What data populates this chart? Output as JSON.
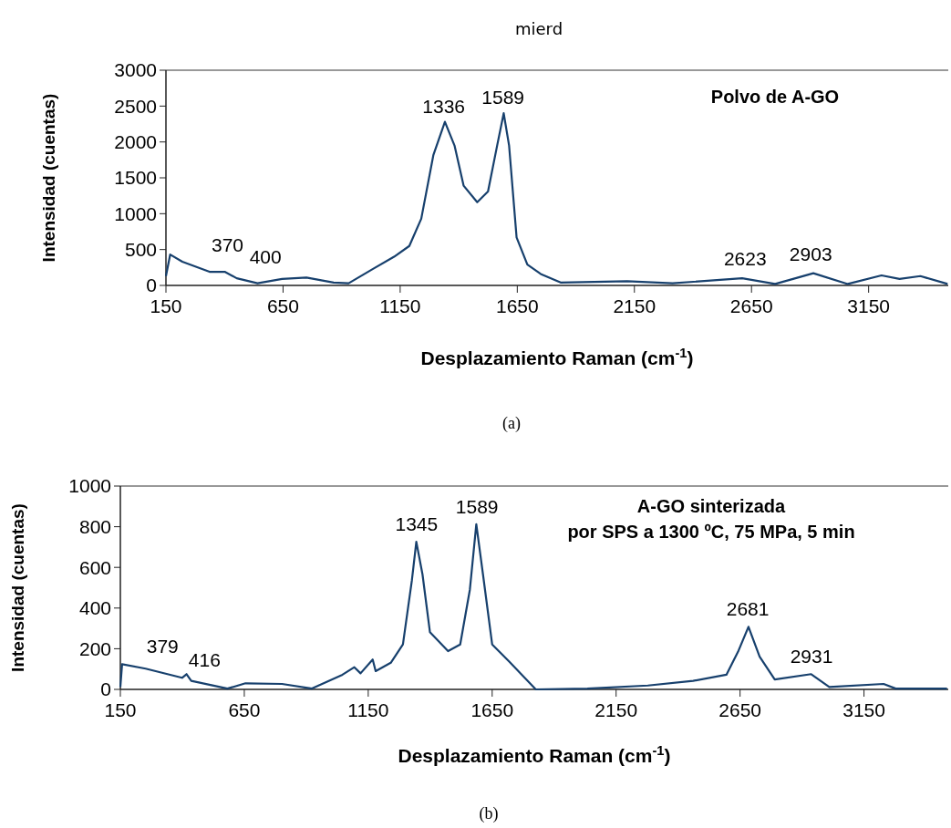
{
  "chart_data": [
    {
      "type": "line",
      "title": "mierd",
      "xlabel": "Desplazamiento Raman (cm$^{-1}$)",
      "ylabel": "Intensidad (cuentas)",
      "xlim": [
        150,
        3490
      ],
      "xticks": [
        150,
        650,
        1150,
        1650,
        2150,
        2650,
        3150
      ],
      "ylim": [
        0,
        3000
      ],
      "yticks": [
        0,
        500,
        1000,
        1500,
        2000,
        2500,
        3000
      ],
      "grid": false,
      "marker": "none",
      "line_style": "solid",
      "series": [
        {
          "color": "#17406d",
          "x": [
            150,
            168,
            220,
            336,
            401,
            452,
            541,
            646,
            750,
            866,
            930,
            1034,
            1124,
            1189,
            1240,
            1292,
            1341,
            1382,
            1421,
            1479,
            1525,
            1564,
            1592,
            1615,
            1647,
            1693,
            1750,
            1835,
            2119,
            2313,
            2610,
            2751,
            2914,
            3061,
            3205,
            3282,
            3371,
            3487
          ],
          "values": [
            130,
            430,
            330,
            190,
            190,
            100,
            30,
            90,
            110,
            40,
            30,
            230,
            400,
            550,
            930,
            1820,
            2280,
            1950,
            1390,
            1160,
            1310,
            1950,
            2400,
            1950,
            670,
            290,
            160,
            40,
            60,
            30,
            100,
            20,
            170,
            20,
            140,
            90,
            130,
            20
          ]
        }
      ],
      "annotations": [
        {
          "text": "1336",
          "x": 1336,
          "y": 2280
        },
        {
          "text": "1589",
          "x": 1589,
          "y": 2400
        },
        {
          "text": "370",
          "x": 370,
          "y": 190
        },
        {
          "text": "400",
          "x": 400,
          "y": 120
        },
        {
          "text": "2623",
          "x": 2623,
          "y": 100
        },
        {
          "text": "2903",
          "x": 2903,
          "y": 170
        },
        "Polvo de A-GO",
        "(a)"
      ]
    },
    {
      "type": "line",
      "xlabel": "Desplazamiento Raman (cm$^{-1}$)",
      "ylabel": "Intensidad (cuentas)",
      "xlim": [
        150,
        3490
      ],
      "xticks": [
        150,
        650,
        1150,
        1650,
        2150,
        2650,
        3150
      ],
      "ylim": [
        0,
        1000
      ],
      "yticks": [
        0,
        200,
        400,
        600,
        800,
        1000
      ],
      "grid": false,
      "marker": "none",
      "line_style": "solid",
      "series": [
        {
          "color": "#17406d",
          "x": [
            150,
            157,
            252,
            399,
            417,
            436,
            582,
            655,
            802,
            923,
            1046,
            1094,
            1119,
            1168,
            1180,
            1241,
            1290,
            1326,
            1344,
            1369,
            1399,
            1472,
            1521,
            1560,
            1586,
            1613,
            1650,
            1717,
            1826,
            2034,
            2278,
            2461,
            2595,
            2644,
            2684,
            2729,
            2790,
            2937,
            3010,
            3229,
            3278,
            3485
          ],
          "values": [
            12,
            124,
            102,
            57,
            75,
            42,
            4,
            30,
            27,
            4,
            72,
            109,
            79,
            147,
            90,
            131,
            221,
            535,
            726,
            565,
            281,
            188,
            221,
            490,
            812,
            565,
            221,
            139,
            0,
            4,
            19,
            42,
            72,
            191,
            308,
            161,
            49,
            75,
            12,
            27,
            4,
            4
          ]
        }
      ],
      "annotations": [
        {
          "text": "1345",
          "x": 1345,
          "y": 726
        },
        {
          "text": "1589",
          "x": 1589,
          "y": 812
        },
        {
          "text": "379",
          "x": 379,
          "y": 90
        },
        {
          "text": "416",
          "x": 416,
          "y": 60
        },
        {
          "text": "2681",
          "x": 2681,
          "y": 308
        },
        {
          "text": "2931",
          "x": 2931,
          "y": 75
        },
        "A-GO sinterizada",
        "por SPS a 1300 ºC, 75 MPa, 5 min",
        "(b)"
      ]
    }
  ]
}
